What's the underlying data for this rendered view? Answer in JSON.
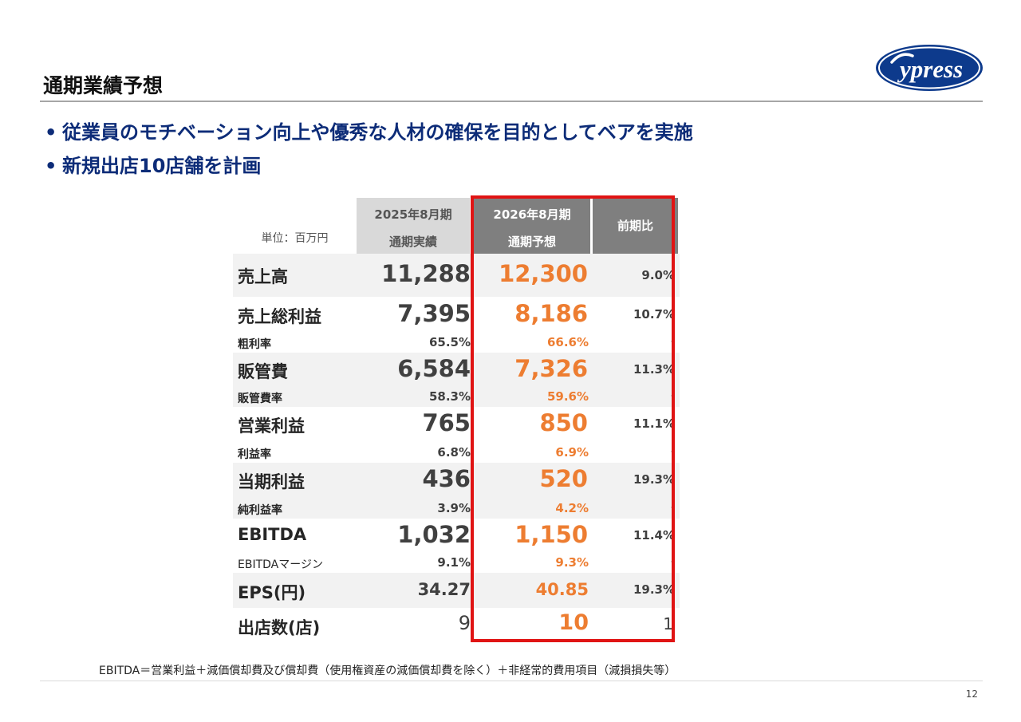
{
  "slide": {
    "title": "通期業績予想",
    "logo_text": "ypress",
    "page_number": "12",
    "footnote": "EBITDA＝営業利益＋減価償却費及び償却費（使用権資産の減価償却費を除く）＋非経常的費用項目（減損損失等）"
  },
  "bullets": [
    "従業員のモチベーション向上や優秀な人材の確保を目的としてベアを実施",
    "新規出店10店舗を計画"
  ],
  "table": {
    "unit": "単位：百万円",
    "prev_header": [
      "2025年8月期",
      "通期実績"
    ],
    "cur_header": [
      "2026年8月期",
      "通期予想"
    ],
    "yoy_header": "前期比",
    "rows": [
      {
        "label": "売上高",
        "prev": "11,288",
        "cur": "12,300",
        "yoy": "9.0%"
      },
      {
        "label": "売上総利益",
        "prev": "7,395",
        "cur": "8,186",
        "yoy": "10.7%",
        "sub_label": "粗利率",
        "sub_prev": "65.5%",
        "sub_cur": "66.6%",
        "sub_yoy": "-"
      },
      {
        "label": "販管費",
        "prev": "6,584",
        "cur": "7,326",
        "yoy": "11.3%",
        "sub_label": "販管費率",
        "sub_prev": "58.3%",
        "sub_cur": "59.6%",
        "sub_yoy": "-"
      },
      {
        "label": "営業利益",
        "prev": "765",
        "cur": "850",
        "yoy": "11.1%",
        "sub_label": "利益率",
        "sub_prev": "6.8%",
        "sub_cur": "6.9%",
        "sub_yoy": "-"
      },
      {
        "label": "当期利益",
        "prev": "436",
        "cur": "520",
        "yoy": "19.3%",
        "sub_label": "純利益率",
        "sub_prev": "3.9%",
        "sub_cur": "4.2%",
        "sub_yoy": "-"
      },
      {
        "label": "EBITDA",
        "prev": "1,032",
        "cur": "1,150",
        "yoy": "11.4%",
        "sub_label": "EBITDAマージン",
        "sub_prev": "9.1%",
        "sub_cur": "9.3%",
        "sub_yoy": "-"
      },
      {
        "label": "EPS(円)",
        "prev": "34.27",
        "cur": "40.85",
        "yoy": "19.3%"
      },
      {
        "label": "出店数(店)",
        "prev": "9",
        "cur": "10",
        "yoy": "1"
      }
    ]
  },
  "colors": {
    "bullet_text": "#0d2c78",
    "forecast_value": "#ed7d31",
    "highlight_box": "#e01414",
    "header_dark": "#7f7f7f",
    "header_light": "#d9d9d9",
    "logo_blue": "#0d3a8c"
  }
}
